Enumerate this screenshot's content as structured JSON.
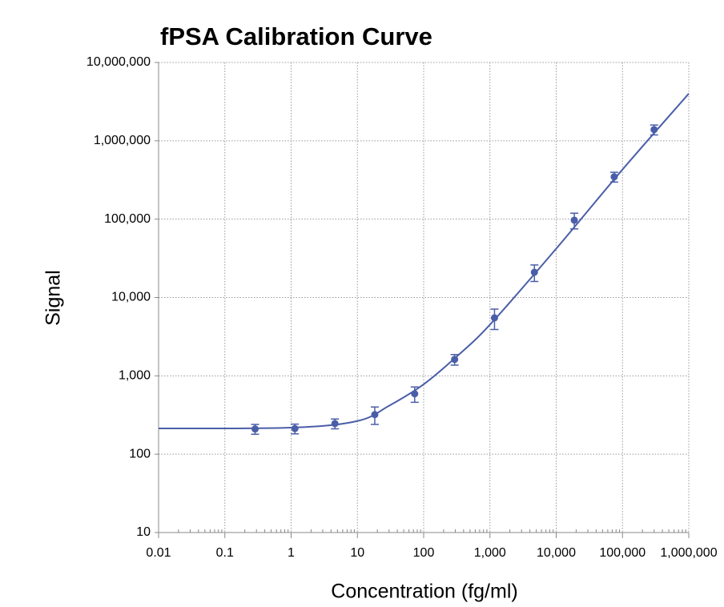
{
  "chart_data": {
    "type": "scatter",
    "title": "fPSA Calibration Curve",
    "x_label": "Concentration (fg/ml)",
    "y_label": "Signal",
    "log_x": true,
    "log_y": true,
    "grid": true,
    "color": "#4a5ea8",
    "xlim": [
      0.01,
      1000000
    ],
    "ylim": [
      10,
      10000000
    ],
    "xticks": [
      0.01,
      0.1,
      1,
      10,
      100,
      {
        "value": 1000,
        "label": "1,000"
      },
      {
        "value": 10000,
        "label": "10,000"
      },
      {
        "value": 100000,
        "label": "100,000"
      },
      {
        "value": 1000000,
        "label": "1,000,000"
      }
    ],
    "yticks": [
      10,
      100,
      {
        "value": 1000,
        "label": "1,000"
      },
      {
        "value": 10000,
        "label": "10,000"
      },
      {
        "value": 100000,
        "label": "100,000"
      },
      {
        "value": 1000000,
        "label": "1,000,000"
      },
      {
        "value": 10000000,
        "label": "10,000,000"
      }
    ],
    "x": [
      0.286,
      1.14,
      4.58,
      18.3,
      73.2,
      293,
      1172,
      4688,
      18750,
      75000,
      300000
    ],
    "values": [
      210,
      212,
      246,
      320,
      590,
      1620,
      5500,
      21000,
      97000,
      347000,
      1390000
    ],
    "errors": [
      30,
      30,
      35,
      80,
      130,
      250,
      1600,
      5000,
      22000,
      50000,
      200000
    ],
    "fit": {
      "x": [
        0.01,
        1,
        10,
        30,
        100,
        300,
        1000,
        10000,
        100000,
        1000000
      ],
      "y": [
        213,
        218,
        265,
        415,
        780,
        1700,
        4500,
        42000,
        430000,
        4000000
      ]
    }
  }
}
